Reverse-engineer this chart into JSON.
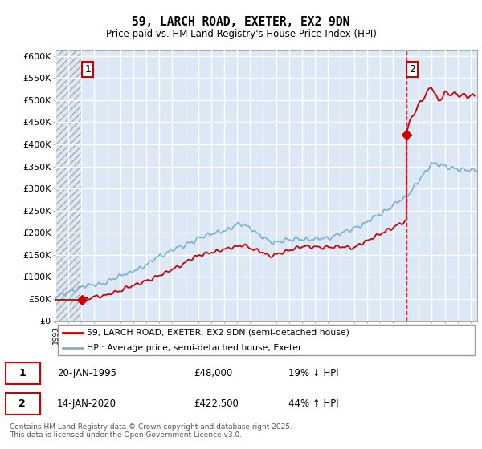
{
  "title": "59, LARCH ROAD, EXETER, EX2 9DN",
  "subtitle": "Price paid vs. HM Land Registry's House Price Index (HPI)",
  "ylabel_ticks": [
    "£0",
    "£50K",
    "£100K",
    "£150K",
    "£200K",
    "£250K",
    "£300K",
    "£350K",
    "£400K",
    "£450K",
    "£500K",
    "£550K",
    "£600K"
  ],
  "ytick_values": [
    0,
    50000,
    100000,
    150000,
    200000,
    250000,
    300000,
    350000,
    400000,
    450000,
    500000,
    550000,
    600000
  ],
  "ylim": [
    0,
    615000
  ],
  "xlim_start": 1993.0,
  "xlim_end": 2025.5,
  "transaction1": {
    "date": 1995.05,
    "price": 48000,
    "label": "1"
  },
  "transaction2": {
    "date": 2020.04,
    "price": 422500,
    "label": "2"
  },
  "vline_x": 2020.04,
  "legend_line1": "59, LARCH ROAD, EXETER, EX2 9DN (semi-detached house)",
  "legend_line2": "HPI: Average price, semi-detached house, Exeter",
  "table_row1": [
    "1",
    "20-JAN-1995",
    "£48,000",
    "19% ↓ HPI"
  ],
  "table_row2": [
    "2",
    "14-JAN-2020",
    "£422,500",
    "44% ↑ HPI"
  ],
  "footer": "Contains HM Land Registry data © Crown copyright and database right 2025.\nThis data is licensed under the Open Government Licence v3.0.",
  "line_color_price": "#cc0000",
  "line_color_hpi": "#7bafd4",
  "background_plot": "#dce8f5",
  "grid_color": "#ffffff"
}
